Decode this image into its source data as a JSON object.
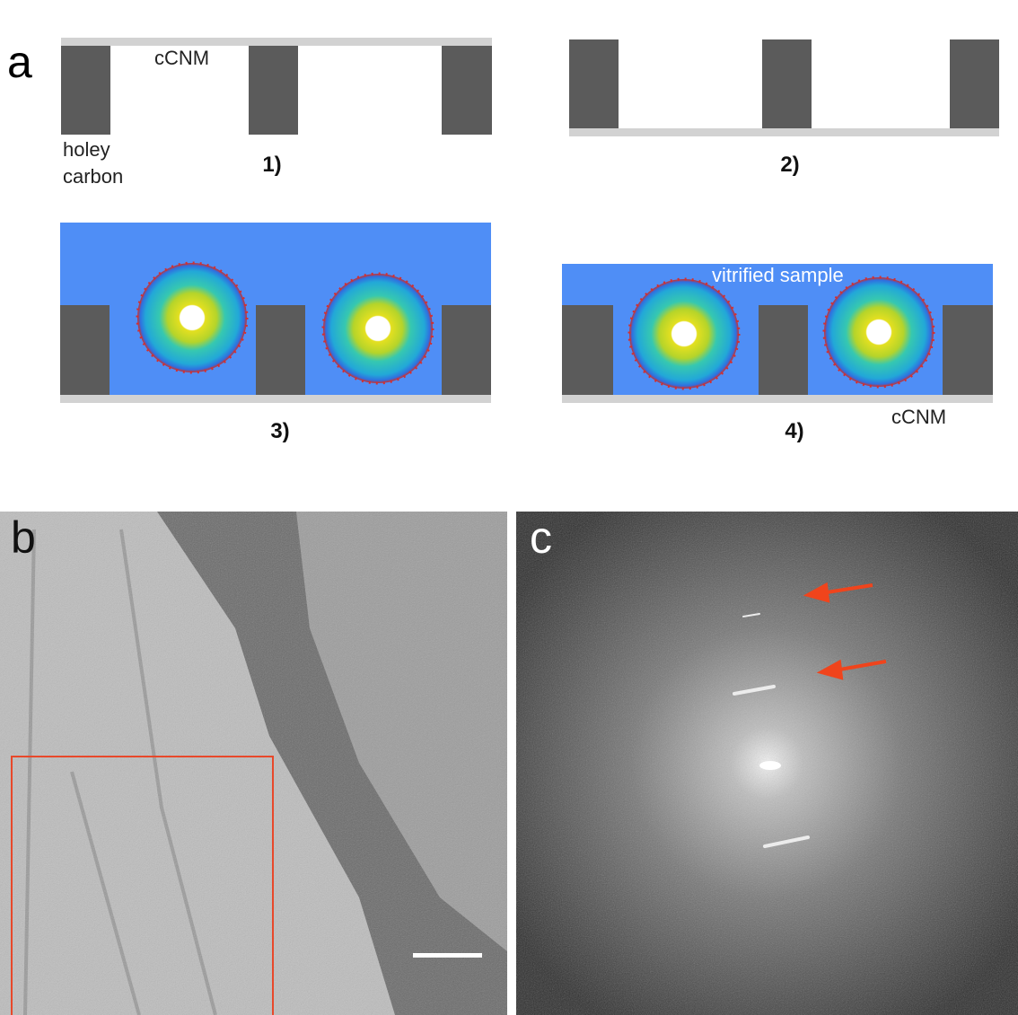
{
  "panel_a": {
    "label": "a",
    "steps": [
      "1)",
      "2)",
      "3)",
      "4)"
    ],
    "annotations": {
      "cnm_top": "cCNM",
      "holey": "holey",
      "carbon": "carbon",
      "vitrified": "vitrified sample",
      "cnm_bottom": "cCNM"
    }
  },
  "panel_b": {
    "label": "b"
  },
  "panel_c": {
    "label": "c"
  }
}
